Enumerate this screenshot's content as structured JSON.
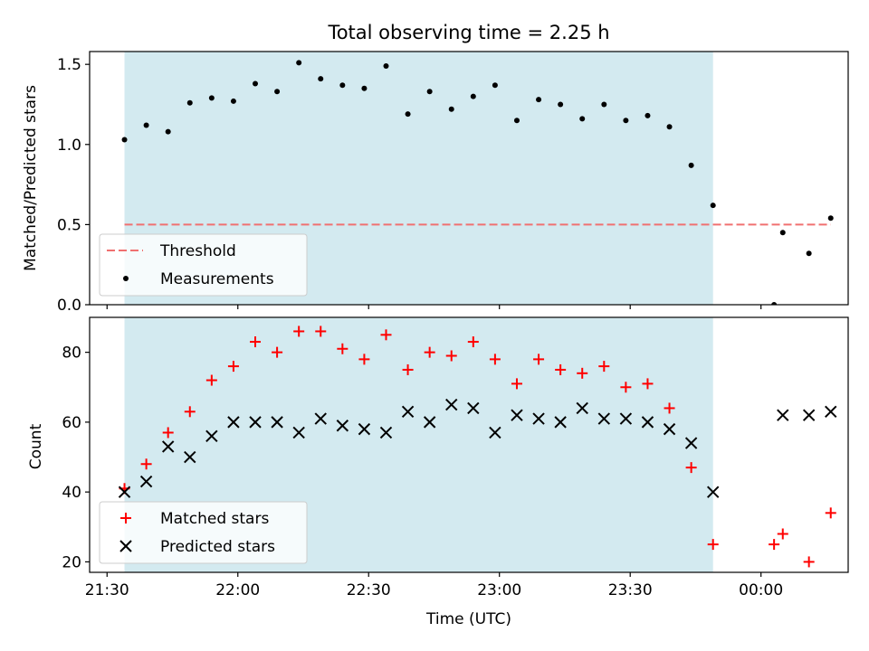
{
  "chart_data": [
    {
      "type": "scatter",
      "title": "Total observing time = 2.25 h",
      "xlabel": "",
      "ylabel": "Matched/Predicted stars",
      "xlim": [
        "21:26",
        "00:20"
      ],
      "ylim": [
        0,
        1.58
      ],
      "yticks": [
        "0.0",
        "0.5",
        "1.0",
        "1.5"
      ],
      "grid": false,
      "legend_position": "lower-left",
      "shaded_interval": {
        "start": "21:34",
        "end": "23:49",
        "color": "#d3eaf0"
      },
      "threshold": {
        "name": "Threshold",
        "value": 0.5,
        "color": "#f07070",
        "x_range": [
          "21:34",
          "00:16"
        ]
      },
      "series": [
        {
          "name": "Measurements",
          "color": "#000000",
          "x": [
            "21:34",
            "21:39",
            "21:44",
            "21:49",
            "21:54",
            "21:59",
            "22:04",
            "22:09",
            "22:14",
            "22:19",
            "22:24",
            "22:29",
            "22:34",
            "22:39",
            "22:44",
            "22:49",
            "22:54",
            "22:59",
            "23:04",
            "23:09",
            "23:14",
            "23:19",
            "23:24",
            "23:29",
            "23:34",
            "23:39",
            "23:44",
            "23:49",
            "00:03",
            "00:05",
            "00:11",
            "00:16"
          ],
          "values": [
            1.03,
            1.12,
            1.08,
            1.26,
            1.29,
            1.27,
            1.38,
            1.33,
            1.51,
            1.41,
            1.37,
            1.35,
            1.49,
            1.19,
            1.33,
            1.22,
            1.3,
            1.37,
            1.15,
            1.28,
            1.25,
            1.16,
            1.25,
            1.15,
            1.18,
            1.11,
            0.87,
            0.62,
            0.0,
            0.45,
            0.32,
            0.54
          ]
        }
      ]
    },
    {
      "type": "scatter",
      "title": "",
      "xlabel": "Time (UTC)",
      "ylabel": "Count",
      "xlim": [
        "21:26",
        "00:20"
      ],
      "ylim": [
        17,
        90
      ],
      "xticks": [
        "21:30",
        "22:00",
        "22:30",
        "23:00",
        "23:30",
        "00:00"
      ],
      "yticks": [
        "20",
        "40",
        "60",
        "80"
      ],
      "grid": false,
      "legend_position": "lower-left",
      "shaded_interval": {
        "start": "21:34",
        "end": "23:49",
        "color": "#d3eaf0"
      },
      "series": [
        {
          "name": "Matched stars",
          "marker": "plus",
          "color": "#ff0000",
          "x": [
            "21:34",
            "21:39",
            "21:44",
            "21:49",
            "21:54",
            "21:59",
            "22:04",
            "22:09",
            "22:14",
            "22:19",
            "22:24",
            "22:29",
            "22:34",
            "22:39",
            "22:44",
            "22:49",
            "22:54",
            "22:59",
            "23:04",
            "23:09",
            "23:14",
            "23:19",
            "23:24",
            "23:29",
            "23:34",
            "23:39",
            "23:44",
            "23:49",
            "00:03",
            "00:05",
            "00:11",
            "00:16"
          ],
          "values": [
            41,
            48,
            57,
            63,
            72,
            76,
            83,
            80,
            86,
            86,
            81,
            78,
            85,
            75,
            80,
            79,
            83,
            78,
            71,
            78,
            75,
            74,
            76,
            70,
            71,
            64,
            47,
            25,
            25,
            28,
            20,
            34
          ]
        },
        {
          "name": "Predicted stars",
          "marker": "x",
          "color": "#000000",
          "x": [
            "21:34",
            "21:39",
            "21:44",
            "21:49",
            "21:54",
            "21:59",
            "22:04",
            "22:09",
            "22:14",
            "22:19",
            "22:24",
            "22:29",
            "22:34",
            "22:39",
            "22:44",
            "22:49",
            "22:54",
            "22:59",
            "23:04",
            "23:09",
            "23:14",
            "23:19",
            "23:24",
            "23:29",
            "23:34",
            "23:39",
            "23:44",
            "23:49",
            "00:05",
            "00:11",
            "00:16"
          ],
          "values": [
            40,
            43,
            53,
            50,
            56,
            60,
            60,
            60,
            57,
            61,
            59,
            58,
            57,
            63,
            60,
            65,
            64,
            57,
            62,
            61,
            60,
            64,
            61,
            61,
            60,
            58,
            54,
            40,
            62,
            62,
            63
          ]
        }
      ]
    }
  ]
}
